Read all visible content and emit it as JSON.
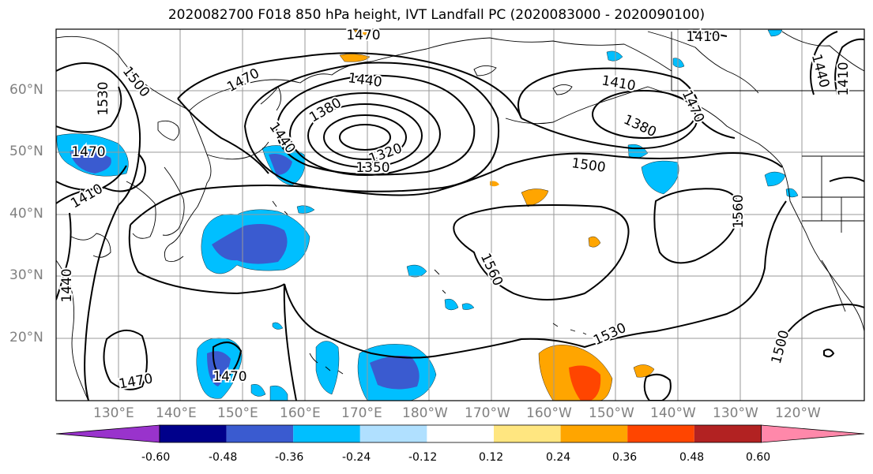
{
  "title": "2020082700 F018 850 hPa height, IVT Landfall PC (2020083000 - 2020090100)",
  "lat_labels": [
    "60°N",
    "50°N",
    "40°N",
    "30°N",
    "20°N"
  ],
  "lon_labels": [
    "130°E",
    "140°E",
    "150°E",
    "160°E",
    "170°E",
    "180°W",
    "170°W",
    "160°W",
    "150°W",
    "140°W",
    "130°W",
    "120°W"
  ],
  "contour_labels": [
    "1500",
    "1530",
    "1470",
    "1440",
    "1470",
    "1410",
    "1380",
    "1380",
    "1440",
    "1320",
    "1350",
    "1410",
    "1470",
    "1410",
    "1470",
    "1440",
    "1410",
    "1500",
    "1560",
    "1560",
    "1470",
    "1470",
    "1440",
    "1530",
    "1500"
  ],
  "colorbar": {
    "ticks": [
      "-0.60",
      "-0.48",
      "-0.36",
      "-0.24",
      "-0.12",
      "0.12",
      "0.24",
      "0.36",
      "0.48",
      "0.60"
    ],
    "colors": [
      "#9933cc",
      "#00008b",
      "#3a5bd0",
      "#00bfff",
      "#b0e0ff",
      "#ffffff",
      "#ffe680",
      "#ffa500",
      "#ff4500",
      "#b22222",
      "#ff88aa"
    ]
  },
  "colors": {
    "land_outline": "#000000",
    "contour": "#000000",
    "grid": "#999999",
    "neg_shading": [
      "#b0e0ff",
      "#00bfff",
      "#3a5bd0"
    ],
    "pos_shading": [
      "#ffe680",
      "#ffa500",
      "#ff4500"
    ]
  }
}
